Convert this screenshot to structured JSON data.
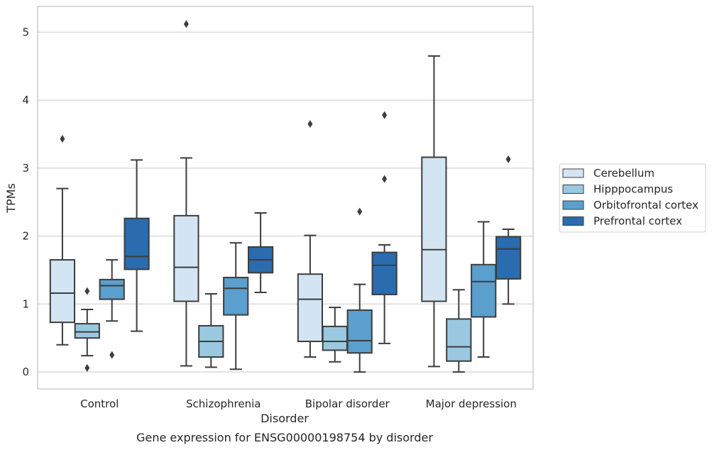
{
  "chart_data": {
    "type": "boxplot",
    "caption": "Gene expression for ENSG00000198754 by disorder",
    "xlabel": "Disorder",
    "ylabel": "TPMs",
    "ylim": [
      -0.25,
      5.38
    ],
    "yticks": [
      0,
      1,
      2,
      3,
      4,
      5
    ],
    "grid": "horizontal",
    "legend_position": "right",
    "categories": [
      "Control",
      "Schizophrenia",
      "Bipolar disorder",
      "Major depression"
    ],
    "series": [
      {
        "name": "Cerebellum",
        "color": "#d3e4f3",
        "boxes": [
          {
            "whisker_low": 0.4,
            "q1": 0.73,
            "median": 1.16,
            "q3": 1.65,
            "whisker_high": 2.7,
            "outliers": [
              3.43
            ]
          },
          {
            "whisker_low": 0.09,
            "q1": 1.04,
            "median": 1.54,
            "q3": 2.3,
            "whisker_high": 3.15,
            "outliers": [
              5.12
            ]
          },
          {
            "whisker_low": 0.22,
            "q1": 0.45,
            "median": 1.07,
            "q3": 1.44,
            "whisker_high": 2.01,
            "outliers": [
              3.65
            ]
          },
          {
            "whisker_low": 0.08,
            "q1": 1.04,
            "median": 1.8,
            "q3": 3.16,
            "whisker_high": 4.65,
            "outliers": []
          }
        ]
      },
      {
        "name": "Hipppocampus",
        "color": "#9ac8e0",
        "boxes": [
          {
            "whisker_low": 0.24,
            "q1": 0.5,
            "median": 0.59,
            "q3": 0.71,
            "whisker_high": 0.92,
            "outliers": [
              0.06,
              1.19
            ]
          },
          {
            "whisker_low": 0.07,
            "q1": 0.22,
            "median": 0.45,
            "q3": 0.68,
            "whisker_high": 1.15,
            "outliers": []
          },
          {
            "whisker_low": 0.15,
            "q1": 0.32,
            "median": 0.45,
            "q3": 0.67,
            "whisker_high": 0.95,
            "outliers": []
          },
          {
            "whisker_low": 0.0,
            "q1": 0.16,
            "median": 0.37,
            "q3": 0.78,
            "whisker_high": 1.21,
            "outliers": []
          }
        ]
      },
      {
        "name": "Orbitofrontal cortex",
        "color": "#5a9fcd",
        "boxes": [
          {
            "whisker_low": 0.75,
            "q1": 1.07,
            "median": 1.27,
            "q3": 1.36,
            "whisker_high": 1.65,
            "outliers": [
              0.25
            ]
          },
          {
            "whisker_low": 0.04,
            "q1": 0.84,
            "median": 1.23,
            "q3": 1.39,
            "whisker_high": 1.9,
            "outliers": []
          },
          {
            "whisker_low": 0.0,
            "q1": 0.28,
            "median": 0.46,
            "q3": 0.91,
            "whisker_high": 1.29,
            "outliers": [
              2.36
            ]
          },
          {
            "whisker_low": 0.22,
            "q1": 0.81,
            "median": 1.33,
            "q3": 1.58,
            "whisker_high": 2.21,
            "outliers": []
          }
        ]
      },
      {
        "name": "Prefrontal cortex",
        "color": "#2a6cad",
        "boxes": [
          {
            "whisker_low": 0.6,
            "q1": 1.51,
            "median": 1.7,
            "q3": 2.26,
            "whisker_high": 3.12,
            "outliers": []
          },
          {
            "whisker_low": 1.17,
            "q1": 1.46,
            "median": 1.65,
            "q3": 1.84,
            "whisker_high": 2.34,
            "outliers": []
          },
          {
            "whisker_low": 0.42,
            "q1": 1.14,
            "median": 1.57,
            "q3": 1.76,
            "whisker_high": 1.87,
            "outliers": [
              2.84,
              3.78
            ]
          },
          {
            "whisker_low": 1.0,
            "q1": 1.37,
            "median": 1.81,
            "q3": 1.99,
            "whisker_high": 2.1,
            "outliers": [
              3.13
            ]
          }
        ]
      }
    ]
  }
}
